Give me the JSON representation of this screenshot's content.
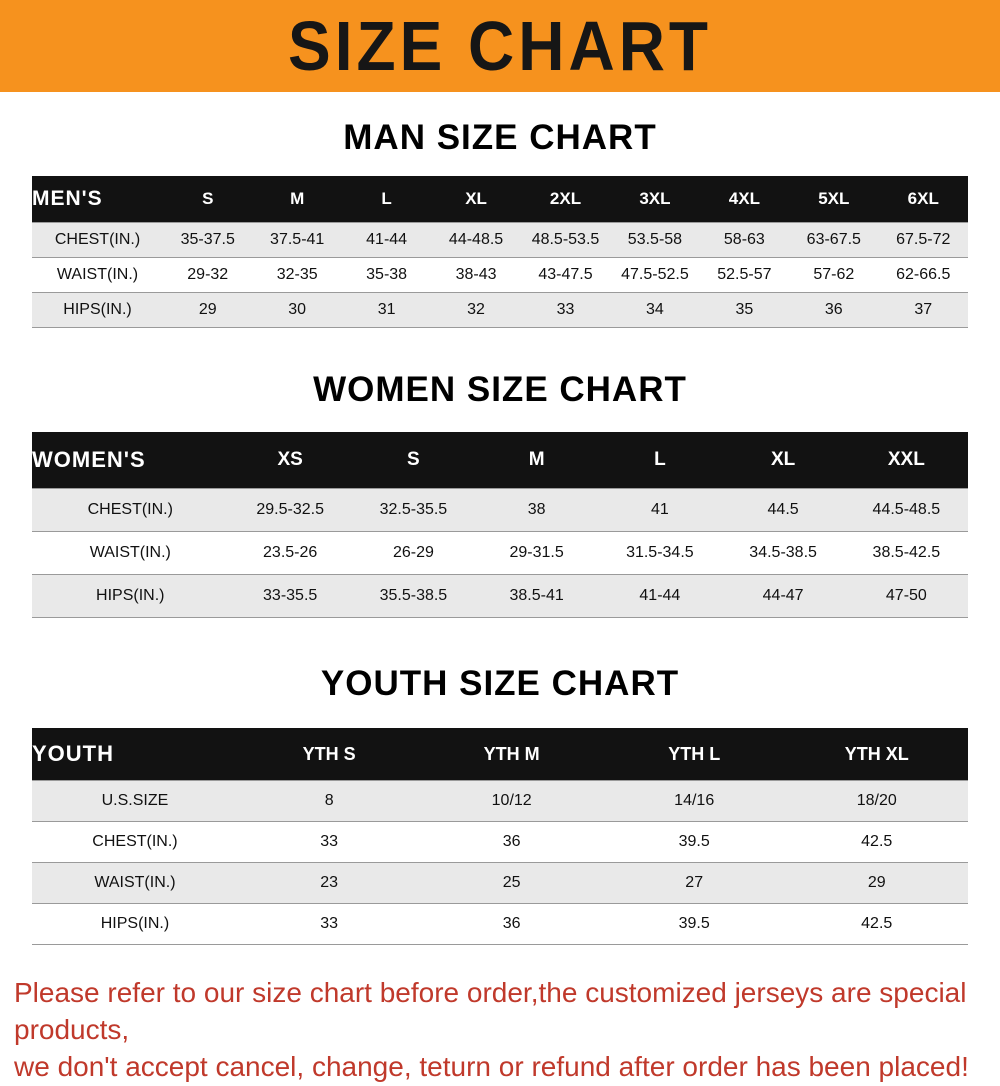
{
  "banner": {
    "title": "SIZE CHART"
  },
  "colors": {
    "banner_bg": "#f6921e",
    "table_header_bg": "#121212",
    "row_stripe": "#e9e9e9",
    "footer_text": "#c0392b"
  },
  "sections": [
    {
      "id": "men",
      "heading": "MAN SIZE CHART",
      "table": {
        "header": [
          "MEN'S",
          "S",
          "M",
          "L",
          "XL",
          "2XL",
          "3XL",
          "4XL",
          "5XL",
          "6XL"
        ],
        "rows": [
          [
            "CHEST(IN.)",
            "35-37.5",
            "37.5-41",
            "41-44",
            "44-48.5",
            "48.5-53.5",
            "53.5-58",
            "58-63",
            "63-67.5",
            "67.5-72"
          ],
          [
            "WAIST(IN.)",
            "29-32",
            "32-35",
            "35-38",
            "38-43",
            "43-47.5",
            "47.5-52.5",
            "52.5-57",
            "57-62",
            "62-66.5"
          ],
          [
            "HIPS(IN.)",
            "29",
            "30",
            "31",
            "32",
            "33",
            "34",
            "35",
            "36",
            "37"
          ]
        ]
      }
    },
    {
      "id": "women",
      "heading": "WOMEN SIZE CHART",
      "table": {
        "header": [
          "WOMEN'S",
          "XS",
          "S",
          "M",
          "L",
          "XL",
          "XXL"
        ],
        "rows": [
          [
            "CHEST(IN.)",
            "29.5-32.5",
            "32.5-35.5",
            "38",
            "41",
            "44.5",
            "44.5-48.5"
          ],
          [
            "WAIST(IN.)",
            "23.5-26",
            "26-29",
            "29-31.5",
            "31.5-34.5",
            "34.5-38.5",
            "38.5-42.5"
          ],
          [
            "HIPS(IN.)",
            "33-35.5",
            "35.5-38.5",
            "38.5-41",
            "41-44",
            "44-47",
            "47-50"
          ]
        ]
      }
    },
    {
      "id": "youth",
      "heading": "YOUTH SIZE CHART",
      "table": {
        "header": [
          "YOUTH",
          "YTH S",
          "YTH M",
          "YTH L",
          "YTH XL"
        ],
        "rows": [
          [
            "U.S.SIZE",
            "8",
            "10/12",
            "14/16",
            "18/20"
          ],
          [
            "CHEST(IN.)",
            "33",
            "36",
            "39.5",
            "42.5"
          ],
          [
            "WAIST(IN.)",
            "23",
            "25",
            "27",
            "29"
          ],
          [
            "HIPS(IN.)",
            "33",
            "36",
            "39.5",
            "42.5"
          ]
        ]
      }
    }
  ],
  "footer": {
    "lines": [
      "Please refer to our size chart before order,the customized jerseys are special products,",
      "we don't accept cancel, change, teturn or refund after order has been placed!"
    ]
  }
}
